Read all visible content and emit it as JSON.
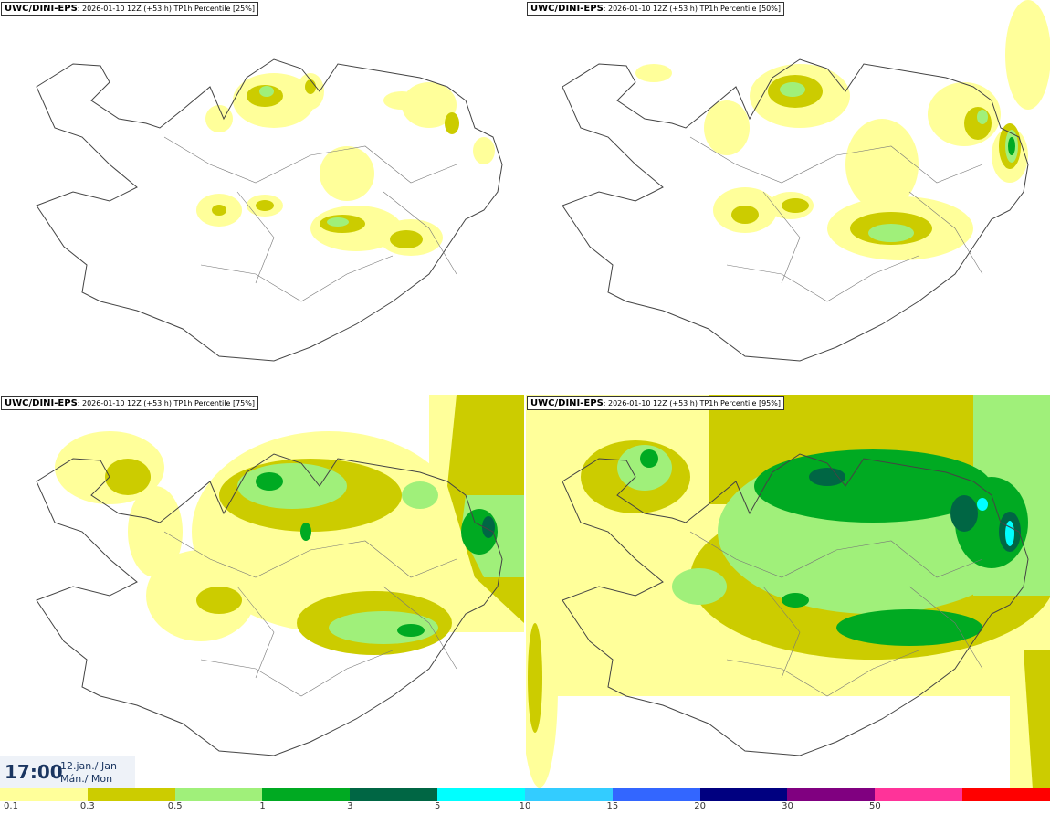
{
  "panels": [
    {
      "model": "UWC/DINI-EPS",
      "run": ": 2026-01-10 12Z (+53 h)",
      "product": "TP1h Percentile",
      "percentile": "[25%]"
    },
    {
      "model": "UWC/DINI-EPS",
      "run": ": 2026-01-10 12Z (+53 h)",
      "product": "TP1h Percentile",
      "percentile": "[50%]"
    },
    {
      "model": "UWC/DINI-EPS",
      "run": ": 2026-01-10 12Z (+53 h)",
      "product": "TP1h Percentile",
      "percentile": "[75%]"
    },
    {
      "model": "UWC/DINI-EPS",
      "run": ": 2026-01-10 12Z (+53 h)",
      "product": "TP1h Percentile",
      "percentile": "[95%]"
    }
  ],
  "valid_time": {
    "time": "17:00",
    "date_line1": "12.jan./ Jan",
    "date_line2": "Mán./ Mon"
  },
  "legend": {
    "colors": [
      "#ffff9a",
      "#cccc00",
      "#a0f07a",
      "#00aa22",
      "#006644",
      "#00ffff",
      "#33ccff",
      "#3366ff",
      "#000080",
      "#800080",
      "#ff3399",
      "#ff0000"
    ],
    "labels": [
      "0.1",
      "0.3",
      "0.5",
      "1",
      "3",
      "5",
      "10",
      "15",
      "20",
      "30",
      "50"
    ]
  }
}
